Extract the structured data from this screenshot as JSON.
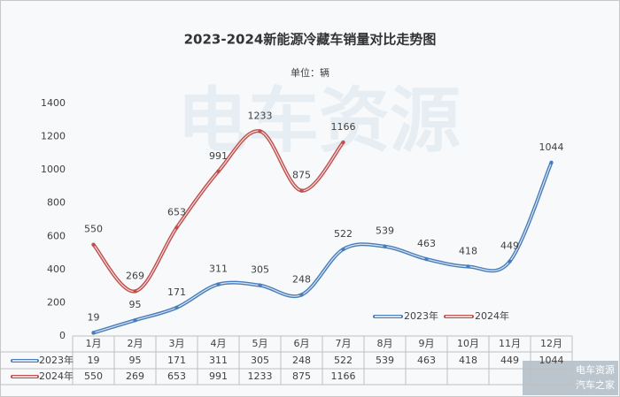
{
  "chart_data": {
    "type": "line",
    "title": "2023-2024新能源冷藏车销量对比走势图",
    "subtitle": "单位：辆",
    "categories": [
      "1月",
      "2月",
      "3月",
      "4月",
      "5月",
      "6月",
      "7月",
      "8月",
      "9月",
      "10月",
      "11月",
      "12月"
    ],
    "series": [
      {
        "name": "2023年",
        "color": "#4a7ebb",
        "values": [
          19,
          95,
          171,
          311,
          305,
          248,
          522,
          539,
          463,
          418,
          449,
          1044
        ]
      },
      {
        "name": "2024年",
        "color": "#c0504d",
        "values": [
          550,
          269,
          653,
          991,
          1233,
          875,
          1166,
          null,
          null,
          null,
          null,
          null
        ]
      }
    ],
    "ylim": [
      0,
      1400
    ],
    "yticks": [
      0,
      200,
      400,
      600,
      800,
      1000,
      1200,
      1400
    ],
    "grid": false,
    "legend": "lower right",
    "watermark": [
      "电车资源",
      "汽车之家"
    ]
  }
}
